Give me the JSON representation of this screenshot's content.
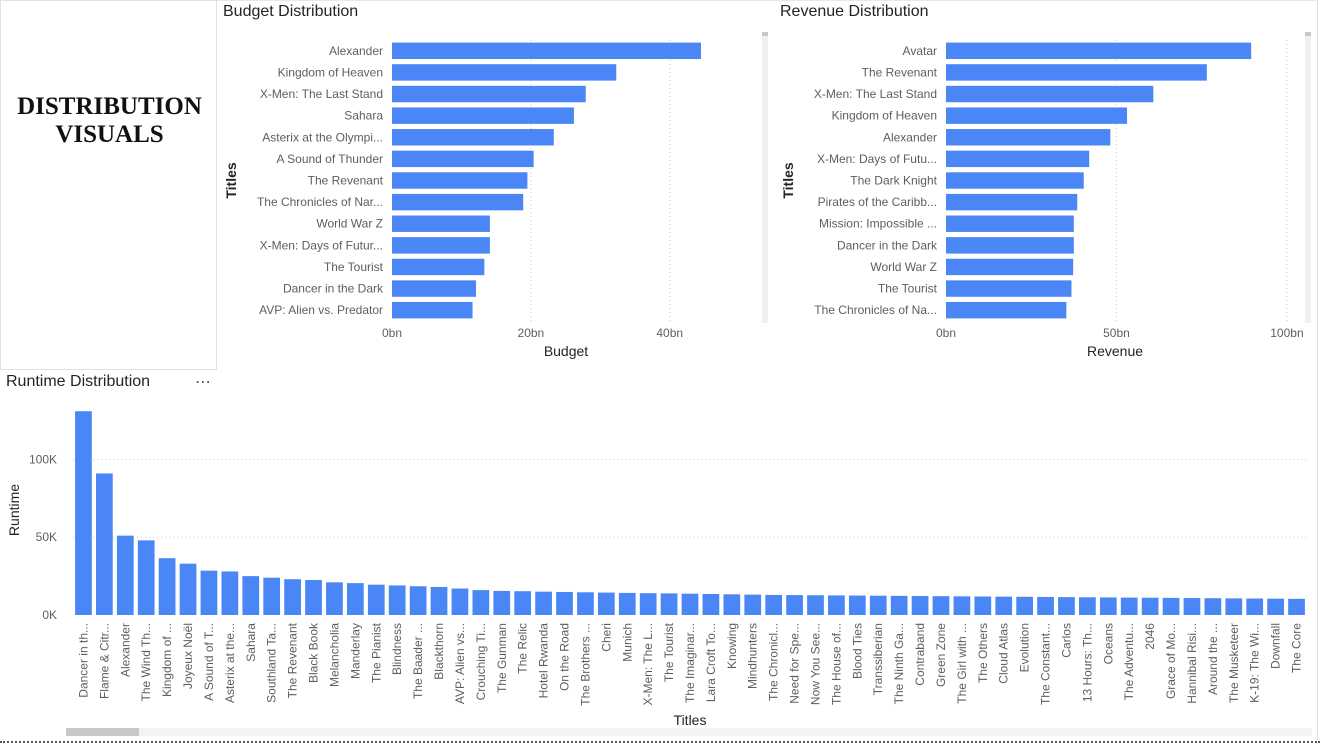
{
  "page": {
    "title_card": [
      "DISTRIBUTION",
      "VISUALS"
    ]
  },
  "colors": {
    "bar": "#4b86f7",
    "grid": "#c8c8c8",
    "axis_text": "#605e5c",
    "scrollbar": "#c8c8c8"
  },
  "budget_visual": {
    "title": "Budget Distribution"
  },
  "revenue_visual": {
    "title": "Revenue Distribution"
  },
  "runtime_visual": {
    "title": "Runtime Distribution",
    "more_icon": "more-options-icon"
  },
  "chart_data": [
    {
      "id": "budget",
      "type": "bar",
      "orientation": "horizontal",
      "title": "Budget Distribution",
      "xlabel": "Budget",
      "ylabel": "Titles",
      "categories": [
        "Alexander",
        "Kingdom of Heaven",
        "X-Men: The Last Stand",
        "Sahara",
        "Asterix at the Olympi...",
        "A Sound of Thunder",
        "The Revenant",
        "The Chronicles of Nar...",
        "World War Z",
        "X-Men: Days of Futur...",
        "The Tourist",
        "Dancer in the Dark",
        "AVP: Alien vs. Predator"
      ],
      "values": [
        44.5,
        32.3,
        27.9,
        26.2,
        23.3,
        20.4,
        19.5,
        18.9,
        14.1,
        14.1,
        13.3,
        12.1,
        11.6
      ],
      "xlim": [
        0,
        53
      ],
      "xticks": [
        0,
        20,
        40
      ],
      "xtick_labels": [
        "0bn",
        "20bn",
        "40bn"
      ],
      "grid": true
    },
    {
      "id": "revenue",
      "type": "bar",
      "orientation": "horizontal",
      "title": "Revenue Distribution",
      "xlabel": "Revenue",
      "ylabel": "Titles",
      "categories": [
        "Avatar",
        "The Revenant",
        "X-Men: The Last Stand",
        "Kingdom of Heaven",
        "Alexander",
        "X-Men: Days of Futu...",
        "The Dark Knight",
        "Pirates of the Caribb...",
        "Mission: Impossible ...",
        "Dancer in the Dark",
        "World War Z",
        "The Tourist",
        "The Chronicles of Na..."
      ],
      "values": [
        89.5,
        76.5,
        60.8,
        53.1,
        48.2,
        42.0,
        40.4,
        38.5,
        37.5,
        37.5,
        37.3,
        36.8,
        35.3
      ],
      "xlim": [
        0,
        105
      ],
      "xticks": [
        0,
        50,
        100
      ],
      "xtick_labels": [
        "0bn",
        "50bn",
        "100bn"
      ],
      "grid": true
    },
    {
      "id": "runtime",
      "type": "bar",
      "orientation": "vertical",
      "title": "Runtime Distribution",
      "xlabel": "Titles",
      "ylabel": "Runtime",
      "categories": [
        "Dancer in th...",
        "Flame & Citr...",
        "Alexander",
        "The Wind Th...",
        "Kingdom of ...",
        "Joyeux Noël",
        "A Sound of T...",
        "Asterix at the...",
        "Sahara",
        "Southland Ta...",
        "The Revenant",
        "Black Book",
        "Melancholia",
        "Manderlay",
        "The Pianist",
        "Blindness",
        "The Baader ...",
        "Blackthorn",
        "AVP: Alien vs...",
        "Crouching Ti...",
        "The Gunman",
        "The Relic",
        "Hotel Rwanda",
        "On the Road",
        "The Brothers ...",
        "Cheri",
        "Munich",
        "X-Men: The L...",
        "The Tourist",
        "The Imaginar...",
        "Lara Croft To...",
        "Knowing",
        "Mindhunters",
        "The Chronicl...",
        "Need for Spe...",
        "Now You See...",
        "The House of...",
        "Blood Ties",
        "Transsiberian",
        "The Ninth Ga...",
        "Contraband",
        "Green Zone",
        "The Girl with ...",
        "The Others",
        "Cloud Atlas",
        "Evolution",
        "The Constant...",
        "Carlos",
        "13 Hours: Th...",
        "Oceans",
        "The Adventu...",
        "2046",
        "Grace of Mo...",
        "Hannibal Risi...",
        "Around the ...",
        "The Musketeer",
        "K-19: The Wi...",
        "Downfall",
        "The Core"
      ],
      "values": [
        131000,
        91000,
        51000,
        48000,
        36500,
        33000,
        28500,
        28000,
        25000,
        24000,
        23000,
        22500,
        21000,
        20500,
        19500,
        19000,
        18500,
        18000,
        17000,
        16000,
        15500,
        15300,
        15000,
        14800,
        14600,
        14400,
        14200,
        14000,
        13900,
        13700,
        13500,
        13300,
        13100,
        12900,
        12800,
        12700,
        12600,
        12500,
        12400,
        12300,
        12200,
        12100,
        12000,
        11900,
        11800,
        11700,
        11600,
        11500,
        11400,
        11300,
        11200,
        11100,
        11000,
        10900,
        10800,
        10700,
        10600,
        10500,
        10400
      ],
      "ylim": [
        0,
        135000
      ],
      "yticks": [
        0,
        50000,
        100000
      ],
      "ytick_labels": [
        "0K",
        "50K",
        "100K"
      ],
      "grid": true
    }
  ]
}
